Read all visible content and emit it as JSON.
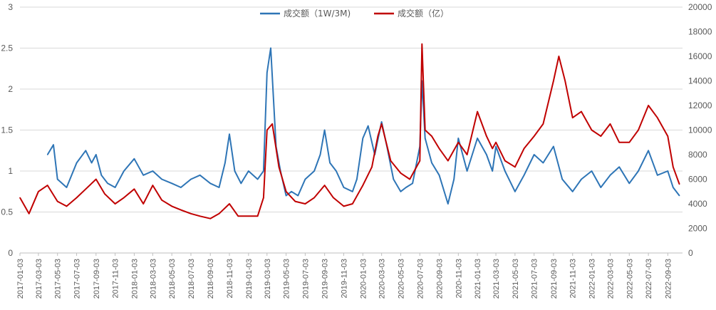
{
  "chart_data": {
    "type": "line",
    "legend_position": "top-center",
    "grid": true,
    "y_left": {
      "ylim": [
        0,
        3
      ],
      "ticks": [
        "0",
        "0.5",
        "1",
        "1.5",
        "2",
        "2.5",
        "3"
      ]
    },
    "y_right": {
      "ylim": [
        0,
        20000
      ],
      "ticks": [
        "0",
        "2000",
        "4000",
        "6000",
        "8000",
        "10000",
        "12000",
        "14000",
        "16000",
        "18000",
        "20000"
      ]
    },
    "x_ticks": [
      "2017-01-03",
      "2017-03-03",
      "2017-05-03",
      "2017-07-03",
      "2017-09-03",
      "2017-11-03",
      "2018-01-03",
      "2018-03-03",
      "2018-05-03",
      "2018-07-03",
      "2018-09-03",
      "2018-11-03",
      "2019-01-03",
      "2019-03-03",
      "2019-05-03",
      "2019-07-03",
      "2019-09-03",
      "2019-11-03",
      "2020-01-03",
      "2020-03-03",
      "2020-05-03",
      "2020-07-03",
      "2020-09-03",
      "2020-11-03",
      "2021-01-03",
      "2021-03-03",
      "2021-05-03",
      "2021-07-03",
      "2021-09-03",
      "2021-11-03",
      "2022-01-03",
      "2022-03-03",
      "2022-05-03",
      "2022-07-03",
      "2022-09-03"
    ],
    "series": [
      {
        "name": "成交额（1W/3M)",
        "axis": "left",
        "color": "#2e75b6",
        "x": [
          "2017-04-01",
          "2017-04-20",
          "2017-05-03",
          "2017-06-01",
          "2017-07-03",
          "2017-08-01",
          "2017-08-20",
          "2017-09-03",
          "2017-09-20",
          "2017-10-10",
          "2017-11-03",
          "2017-12-01",
          "2018-01-03",
          "2018-02-01",
          "2018-03-03",
          "2018-04-01",
          "2018-05-03",
          "2018-06-01",
          "2018-07-03",
          "2018-08-01",
          "2018-09-03",
          "2018-10-01",
          "2018-10-20",
          "2018-11-03",
          "2018-11-20",
          "2018-12-10",
          "2019-01-03",
          "2019-02-01",
          "2019-02-20",
          "2019-03-03",
          "2019-03-15",
          "2019-04-01",
          "2019-04-15",
          "2019-05-03",
          "2019-05-20",
          "2019-06-10",
          "2019-07-03",
          "2019-08-01",
          "2019-08-20",
          "2019-09-03",
          "2019-09-20",
          "2019-10-10",
          "2019-11-03",
          "2019-12-01",
          "2019-12-15",
          "2020-01-03",
          "2020-01-20",
          "2020-02-10",
          "2020-03-03",
          "2020-03-20",
          "2020-04-10",
          "2020-05-03",
          "2020-05-20",
          "2020-06-10",
          "2020-07-03",
          "2020-07-10",
          "2020-07-20",
          "2020-08-10",
          "2020-09-03",
          "2020-10-01",
          "2020-10-20",
          "2020-11-03",
          "2020-12-01",
          "2021-01-03",
          "2021-02-01",
          "2021-02-20",
          "2021-03-03",
          "2021-04-01",
          "2021-05-03",
          "2021-06-01",
          "2021-07-03",
          "2021-08-01",
          "2021-09-03",
          "2021-10-01",
          "2021-11-03",
          "2021-12-01",
          "2022-01-03",
          "2022-02-01",
          "2022-03-03",
          "2022-04-01",
          "2022-05-03",
          "2022-06-01",
          "2022-07-03",
          "2022-08-01",
          "2022-09-03",
          "2022-09-20",
          "2022-10-10"
        ],
        "y": [
          1.2,
          1.32,
          0.9,
          0.8,
          1.1,
          1.25,
          1.1,
          1.2,
          0.95,
          0.85,
          0.8,
          1.0,
          1.15,
          0.95,
          1.0,
          0.9,
          0.85,
          0.8,
          0.9,
          0.95,
          0.85,
          0.8,
          1.1,
          1.45,
          1.0,
          0.85,
          1.0,
          0.9,
          1.0,
          2.2,
          2.5,
          1.3,
          1.0,
          0.7,
          0.75,
          0.7,
          0.9,
          1.0,
          1.2,
          1.5,
          1.1,
          1.0,
          0.8,
          0.75,
          0.9,
          1.4,
          1.55,
          1.2,
          1.6,
          1.3,
          0.9,
          0.75,
          0.8,
          0.85,
          1.3,
          2.1,
          1.4,
          1.1,
          0.95,
          0.6,
          0.9,
          1.4,
          1.0,
          1.4,
          1.2,
          1.0,
          1.3,
          1.0,
          0.75,
          0.95,
          1.2,
          1.1,
          1.3,
          0.9,
          0.75,
          0.9,
          1.0,
          0.8,
          0.95,
          1.05,
          0.85,
          1.0,
          1.25,
          0.95,
          1.0,
          0.8,
          0.7
        ]
      },
      {
        "name": "成交额（亿）",
        "axis": "right",
        "color": "#c00000",
        "x": [
          "2017-01-03",
          "2017-02-01",
          "2017-03-03",
          "2017-04-01",
          "2017-05-03",
          "2017-06-01",
          "2017-07-03",
          "2017-08-01",
          "2017-09-03",
          "2017-10-01",
          "2017-11-03",
          "2017-12-01",
          "2018-01-03",
          "2018-02-01",
          "2018-03-03",
          "2018-04-01",
          "2018-05-03",
          "2018-06-01",
          "2018-07-03",
          "2018-08-01",
          "2018-09-03",
          "2018-10-01",
          "2018-11-03",
          "2018-12-01",
          "2019-01-03",
          "2019-02-01",
          "2019-02-20",
          "2019-03-03",
          "2019-03-20",
          "2019-04-10",
          "2019-05-03",
          "2019-06-01",
          "2019-07-03",
          "2019-08-01",
          "2019-09-03",
          "2019-10-01",
          "2019-11-03",
          "2019-12-01",
          "2020-01-03",
          "2020-02-01",
          "2020-02-20",
          "2020-03-03",
          "2020-04-01",
          "2020-05-03",
          "2020-06-01",
          "2020-07-03",
          "2020-07-10",
          "2020-07-20",
          "2020-08-10",
          "2020-09-03",
          "2020-10-01",
          "2020-11-03",
          "2020-12-01",
          "2021-01-03",
          "2021-02-01",
          "2021-02-20",
          "2021-03-03",
          "2021-04-01",
          "2021-05-03",
          "2021-06-01",
          "2021-07-03",
          "2021-08-01",
          "2021-09-03",
          "2021-09-20",
          "2021-10-10",
          "2021-11-03",
          "2021-12-01",
          "2022-01-03",
          "2022-02-01",
          "2022-03-03",
          "2022-04-01",
          "2022-05-03",
          "2022-06-01",
          "2022-07-03",
          "2022-08-01",
          "2022-09-03",
          "2022-09-20",
          "2022-10-10"
        ],
        "y": [
          4500,
          3200,
          5000,
          5500,
          4200,
          3800,
          4500,
          5200,
          6000,
          4800,
          4000,
          4500,
          5200,
          4000,
          5500,
          4300,
          3800,
          3500,
          3200,
          3000,
          2800,
          3200,
          4000,
          3000,
          3000,
          3000,
          4500,
          10000,
          10500,
          7000,
          5000,
          4200,
          4000,
          4500,
          5500,
          4500,
          3800,
          4000,
          5500,
          7000,
          9500,
          10500,
          7500,
          6500,
          6000,
          7500,
          17000,
          10000,
          9500,
          8500,
          7500,
          9000,
          8000,
          11500,
          9500,
          8500,
          9000,
          7500,
          7000,
          8500,
          9500,
          10500,
          14000,
          16000,
          14000,
          11000,
          11500,
          10000,
          9500,
          10500,
          9000,
          9000,
          10000,
          12000,
          11000,
          9500,
          7000,
          5600
        ]
      }
    ]
  }
}
